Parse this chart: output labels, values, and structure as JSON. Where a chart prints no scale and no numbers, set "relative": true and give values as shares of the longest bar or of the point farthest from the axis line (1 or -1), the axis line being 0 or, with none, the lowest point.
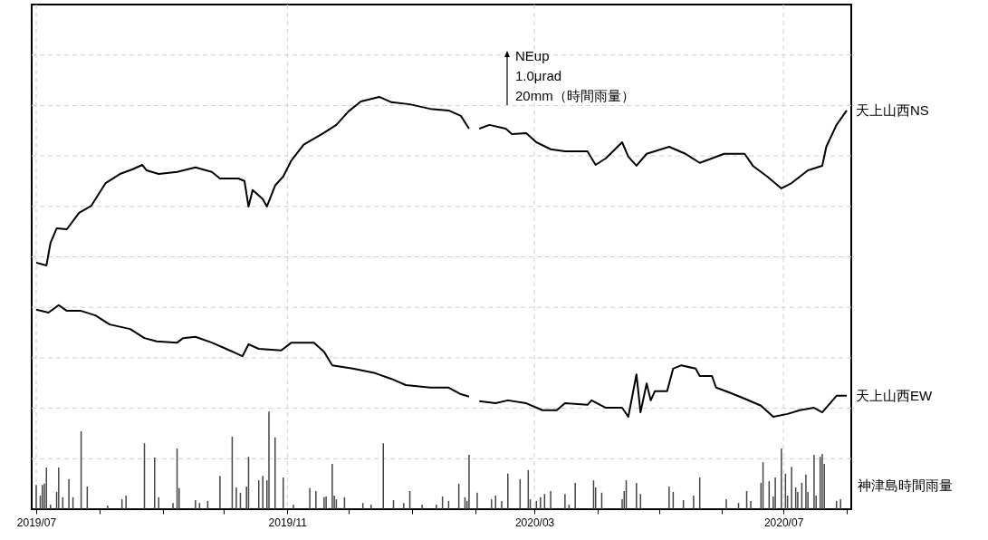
{
  "chart_data": {
    "type": "line",
    "relative": true,
    "grid": true,
    "annotations": [
      "NEup",
      "1.0μrad",
      "20mm（時間雨量）"
    ],
    "xlim": [
      "2019-07-01",
      "2020-08-01"
    ],
    "xticks": [
      {
        "value": "2019-07",
        "label": "2019/07"
      },
      {
        "value": "2019-08",
        "label": null
      },
      {
        "value": "2019-09",
        "label": null
      },
      {
        "value": "2019-10",
        "label": null
      },
      {
        "value": "2019-11",
        "label": "2019/11"
      },
      {
        "value": "2019-12",
        "label": null
      },
      {
        "value": "2020-01",
        "label": null
      },
      {
        "value": "2020-02",
        "label": null
      },
      {
        "value": "2020-03",
        "label": "2020/03"
      },
      {
        "value": "2020-04",
        "label": null
      },
      {
        "value": "2020-05",
        "label": null
      },
      {
        "value": "2020-06",
        "label": null
      },
      {
        "value": "2020-07",
        "label": "2020/07"
      },
      {
        "value": "2020-08",
        "label": null
      }
    ],
    "series": [
      {
        "name": "天上山西NS",
        "color": "#000000",
        "x": [
          "2019-07-01",
          "2019-07-06",
          "2019-07-08",
          "2019-07-11",
          "2019-07-16",
          "2019-07-22",
          "2019-07-28",
          "2019-08-04",
          "2019-08-11",
          "2019-08-17",
          "2019-08-22",
          "2019-08-24",
          "2019-08-30",
          "2019-09-08",
          "2019-09-17",
          "2019-09-25",
          "2019-09-29",
          "2019-10-08",
          "2019-10-11",
          "2019-10-13",
          "2019-10-15",
          "2019-10-20",
          "2019-10-22",
          "2019-10-26",
          "2019-10-30",
          "2019-11-03",
          "2019-11-09",
          "2019-11-18",
          "2019-11-25",
          "2019-12-01",
          "2019-12-07",
          "2019-12-16",
          "2019-12-22",
          "2019-12-31",
          "2020-01-10",
          "2020-01-19",
          "2020-01-25",
          "2020-01-29",
          "2020-02-01",
          "2020-02-03",
          "2020-02-08",
          "2020-02-16",
          "2020-02-19",
          "2020-02-26",
          "2020-03-02",
          "2020-03-09",
          "2020-03-16",
          "2020-03-27",
          "2020-03-31",
          "2020-04-05",
          "2020-04-13",
          "2020-04-16",
          "2020-04-20",
          "2020-04-25",
          "2020-05-06",
          "2020-05-14",
          "2020-05-21",
          "2020-06-02",
          "2020-06-12",
          "2020-06-16",
          "2020-06-23",
          "2020-06-30",
          "2020-07-05",
          "2020-07-13",
          "2020-07-20",
          "2020-07-22",
          "2020-07-27",
          "2020-08-01"
        ],
        "values": [
          0.598,
          0.591,
          0.646,
          0.681,
          0.679,
          0.719,
          0.736,
          0.791,
          0.813,
          0.824,
          0.835,
          0.822,
          0.813,
          0.818,
          0.829,
          0.818,
          0.802,
          0.802,
          0.796,
          0.734,
          0.774,
          0.752,
          0.734,
          0.785,
          0.807,
          0.846,
          0.884,
          0.91,
          0.932,
          0.965,
          0.989,
          1,
          0.987,
          0.982,
          0.971,
          0.967,
          0.954,
          0.923,
          null,
          0.923,
          0.932,
          0.923,
          0.91,
          0.912,
          0.89,
          0.873,
          0.868,
          0.868,
          0.835,
          0.851,
          0.89,
          0.855,
          0.833,
          0.862,
          0.879,
          0.862,
          0.84,
          0.862,
          0.862,
          0.833,
          0.807,
          0.778,
          0.791,
          0.822,
          0.833,
          0.879,
          0.932,
          0.967
        ]
      },
      {
        "name": "天上山西EW",
        "color": "#000000",
        "x": [
          "2019-07-01",
          "2019-07-07",
          "2019-07-12",
          "2019-07-16",
          "2019-07-23",
          "2019-07-30",
          "2019-08-06",
          "2019-08-16",
          "2019-08-23",
          "2019-08-29",
          "2019-09-08",
          "2019-09-11",
          "2019-09-17",
          "2019-09-25",
          "2019-10-02",
          "2019-10-10",
          "2019-10-13",
          "2019-10-18",
          "2019-10-29",
          "2019-11-03",
          "2019-11-14",
          "2019-11-19",
          "2019-11-23",
          "2019-12-03",
          "2019-12-14",
          "2019-12-22",
          "2019-12-29",
          "2020-01-10",
          "2020-01-19",
          "2020-01-25",
          "2020-01-29",
          "2020-02-01",
          "2020-02-03",
          "2020-02-11",
          "2020-02-17",
          "2020-02-26",
          "2020-03-05",
          "2020-03-12",
          "2020-03-16",
          "2020-03-27",
          "2020-03-29",
          "2020-04-05",
          "2020-04-13",
          "2020-04-16",
          "2020-04-19",
          "2020-04-20",
          "2020-04-22",
          "2020-04-25",
          "2020-04-27",
          "2020-04-29",
          "2020-05-05",
          "2020-05-08",
          "2020-05-12",
          "2020-05-19",
          "2020-05-21",
          "2020-05-27",
          "2020-05-29",
          "2020-06-04",
          "2020-06-12",
          "2020-06-20",
          "2020-06-26",
          "2020-07-03",
          "2020-07-09",
          "2020-07-16",
          "2020-07-20",
          "2020-07-27",
          "2020-08-01"
        ],
        "values": [
          0.484,
          0.477,
          0.495,
          0.481,
          0.481,
          0.47,
          0.448,
          0.437,
          0.415,
          0.407,
          0.404,
          0.415,
          0.418,
          0.404,
          0.389,
          0.371,
          0.4,
          0.389,
          0.385,
          0.404,
          0.404,
          0.382,
          0.349,
          0.341,
          0.33,
          0.316,
          0.301,
          0.295,
          0.295,
          0.279,
          0.273,
          null,
          0.262,
          0.257,
          0.264,
          0.257,
          0.24,
          0.24,
          0.257,
          0.253,
          0.264,
          0.246,
          0.246,
          0.224,
          0.301,
          0.327,
          0.235,
          0.305,
          0.264,
          0.286,
          0.286,
          0.341,
          0.349,
          0.341,
          0.323,
          0.323,
          0.295,
          0.284,
          0.268,
          0.251,
          0.224,
          0.231,
          0.24,
          0.246,
          0.235,
          0.275,
          0.275
        ]
      },
      {
        "name": "神津島時間雨量",
        "type": "bar",
        "color": "#444444",
        "x": [
          "2019-07-01",
          "2019-07-03",
          "2019-07-04",
          "2019-07-05",
          "2019-07-06",
          "2019-07-08",
          "2019-07-11",
          "2019-07-12",
          "2019-07-14",
          "2019-07-17",
          "2019-07-19",
          "2019-07-23",
          "2019-07-26",
          "2019-08-05",
          "2019-08-12",
          "2019-08-14",
          "2019-08-23",
          "2019-08-28",
          "2019-08-30",
          "2019-09-06",
          "2019-09-08",
          "2019-09-09",
          "2019-09-17",
          "2019-09-19",
          "2019-09-23",
          "2019-09-29",
          "2019-10-05",
          "2019-10-07",
          "2019-10-09",
          "2019-10-12",
          "2019-10-13",
          "2019-10-18",
          "2019-10-20",
          "2019-10-22",
          "2019-10-23",
          "2019-10-26",
          "2019-10-30",
          "2019-11-04",
          "2019-11-12",
          "2019-11-15",
          "2019-11-19",
          "2019-11-20",
          "2019-11-23",
          "2019-11-24",
          "2019-11-25",
          "2019-11-29",
          "2019-12-08",
          "2019-12-12",
          "2019-12-18",
          "2019-12-23",
          "2019-12-28",
          "2019-12-31",
          "2020-01-06",
          "2020-01-13",
          "2020-01-16",
          "2020-01-19",
          "2020-01-24",
          "2020-01-27",
          "2020-01-28",
          "2020-01-29",
          "2020-02-02",
          "2020-02-09",
          "2020-02-11",
          "2020-02-14",
          "2020-02-17",
          "2020-02-23",
          "2020-02-27",
          "2020-02-28",
          "2020-03-02",
          "2020-03-04",
          "2020-03-06",
          "2020-03-09",
          "2020-03-16",
          "2020-03-18",
          "2020-03-21",
          "2020-03-30",
          "2020-03-31",
          "2020-04-03",
          "2020-04-13",
          "2020-04-14",
          "2020-04-15",
          "2020-04-20",
          "2020-04-22",
          "2020-05-06",
          "2020-05-08",
          "2020-05-13",
          "2020-05-18",
          "2020-05-21",
          "2020-06-03",
          "2020-06-09",
          "2020-06-13",
          "2020-06-15",
          "2020-06-20",
          "2020-06-21",
          "2020-06-24",
          "2020-06-26",
          "2020-06-27",
          "2020-06-30",
          "2020-07-02",
          "2020-07-03",
          "2020-07-05",
          "2020-07-07",
          "2020-07-08",
          "2020-07-10",
          "2020-07-12",
          "2020-07-13",
          "2020-07-16",
          "2020-07-17",
          "2020-07-19",
          "2020-07-20",
          "2020-07-21",
          "2020-07-27",
          "2020-07-29"
        ],
        "values": [
          0.059,
          0.033,
          0.059,
          0.062,
          0.101,
          0.011,
          0.042,
          0.101,
          0.029,
          0.073,
          0.029,
          0.189,
          0.055,
          0.009,
          0.024,
          0.033,
          0.16,
          0.125,
          0.029,
          0.015,
          0.147,
          0.051,
          0.022,
          0.015,
          0.02,
          0.081,
          0.176,
          0.053,
          0.04,
          0.055,
          0.127,
          0.07,
          0.081,
          0.07,
          0.237,
          0.174,
          0.077,
          0.011,
          0.051,
          0.044,
          0.029,
          0.031,
          0.11,
          0.033,
          0.024,
          0.029,
          0.015,
          0.011,
          0.16,
          0.022,
          0.015,
          0.044,
          0.011,
          0.011,
          0.031,
          0.02,
          0.062,
          0.029,
          0.02,
          0.132,
          0.04,
          0.024,
          0.033,
          0.02,
          0.086,
          0.073,
          0.095,
          0.024,
          0.02,
          0.029,
          0.037,
          0.044,
          0.037,
          0.011,
          0.064,
          0.07,
          0.053,
          0.04,
          0.024,
          0.044,
          0.07,
          0.064,
          0.037,
          0.055,
          0.042,
          0.022,
          0.033,
          0.077,
          0.024,
          0.015,
          0.044,
          0.02,
          0.064,
          0.114,
          0.068,
          0.031,
          0.077,
          0.147,
          0.086,
          0.033,
          0.103,
          0.053,
          0.042,
          0.064,
          0.084,
          0.042,
          0.132,
          0.033,
          0.127,
          0.134,
          0.11,
          0.02,
          0.024
        ]
      }
    ]
  }
}
